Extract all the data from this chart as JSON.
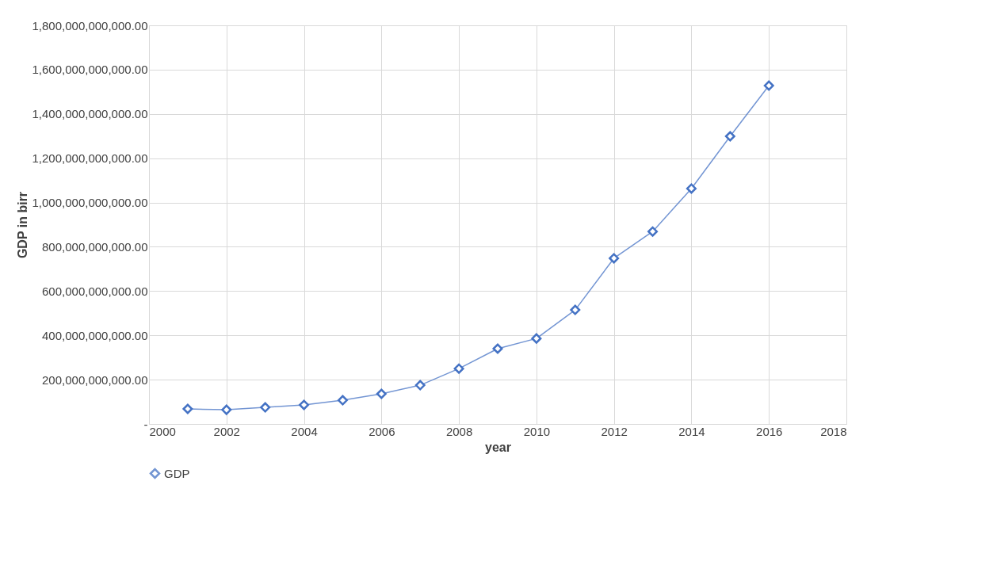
{
  "chart_data": {
    "type": "line",
    "xlabel": "year",
    "ylabel": "GDP in birr",
    "x": [
      2001,
      2002,
      2003,
      2004,
      2005,
      2006,
      2007,
      2008,
      2009,
      2010,
      2011,
      2012,
      2013,
      2014,
      2015,
      2016
    ],
    "series": [
      {
        "name": "GDP",
        "color": "#4472c4",
        "values": [
          68000000000,
          64000000000,
          75000000000,
          86000000000,
          107000000000,
          136000000000,
          175000000000,
          250000000000,
          340000000000,
          386000000000,
          515000000000,
          748000000000,
          869000000000,
          1063000000000,
          1299000000000,
          1528000000000
        ]
      }
    ],
    "xlim": [
      2000,
      2018
    ],
    "xticks": [
      2000,
      2002,
      2004,
      2006,
      2008,
      2010,
      2012,
      2014,
      2016,
      2018
    ],
    "ylim": [
      0,
      1800000000000
    ],
    "yticks": [
      {
        "value": 0,
        "label": "-"
      },
      {
        "value": 200000000000,
        "label": "200,000,000,000.00"
      },
      {
        "value": 400000000000,
        "label": "400,000,000,000.00"
      },
      {
        "value": 600000000000,
        "label": "600,000,000,000.00"
      },
      {
        "value": 800000000000,
        "label": "800,000,000,000.00"
      },
      {
        "value": 1000000000000,
        "label": "1,000,000,000,000.00"
      },
      {
        "value": 1200000000000,
        "label": "1,200,000,000,000.00"
      },
      {
        "value": 1400000000000,
        "label": "1,400,000,000,000.00"
      },
      {
        "value": 1600000000000,
        "label": "1,600,000,000,000.00"
      },
      {
        "value": 1800000000000,
        "label": "1,800,000,000,000.00"
      }
    ],
    "grid": true,
    "legend": "bottom",
    "marker": "diamond",
    "line_style": "solid"
  }
}
